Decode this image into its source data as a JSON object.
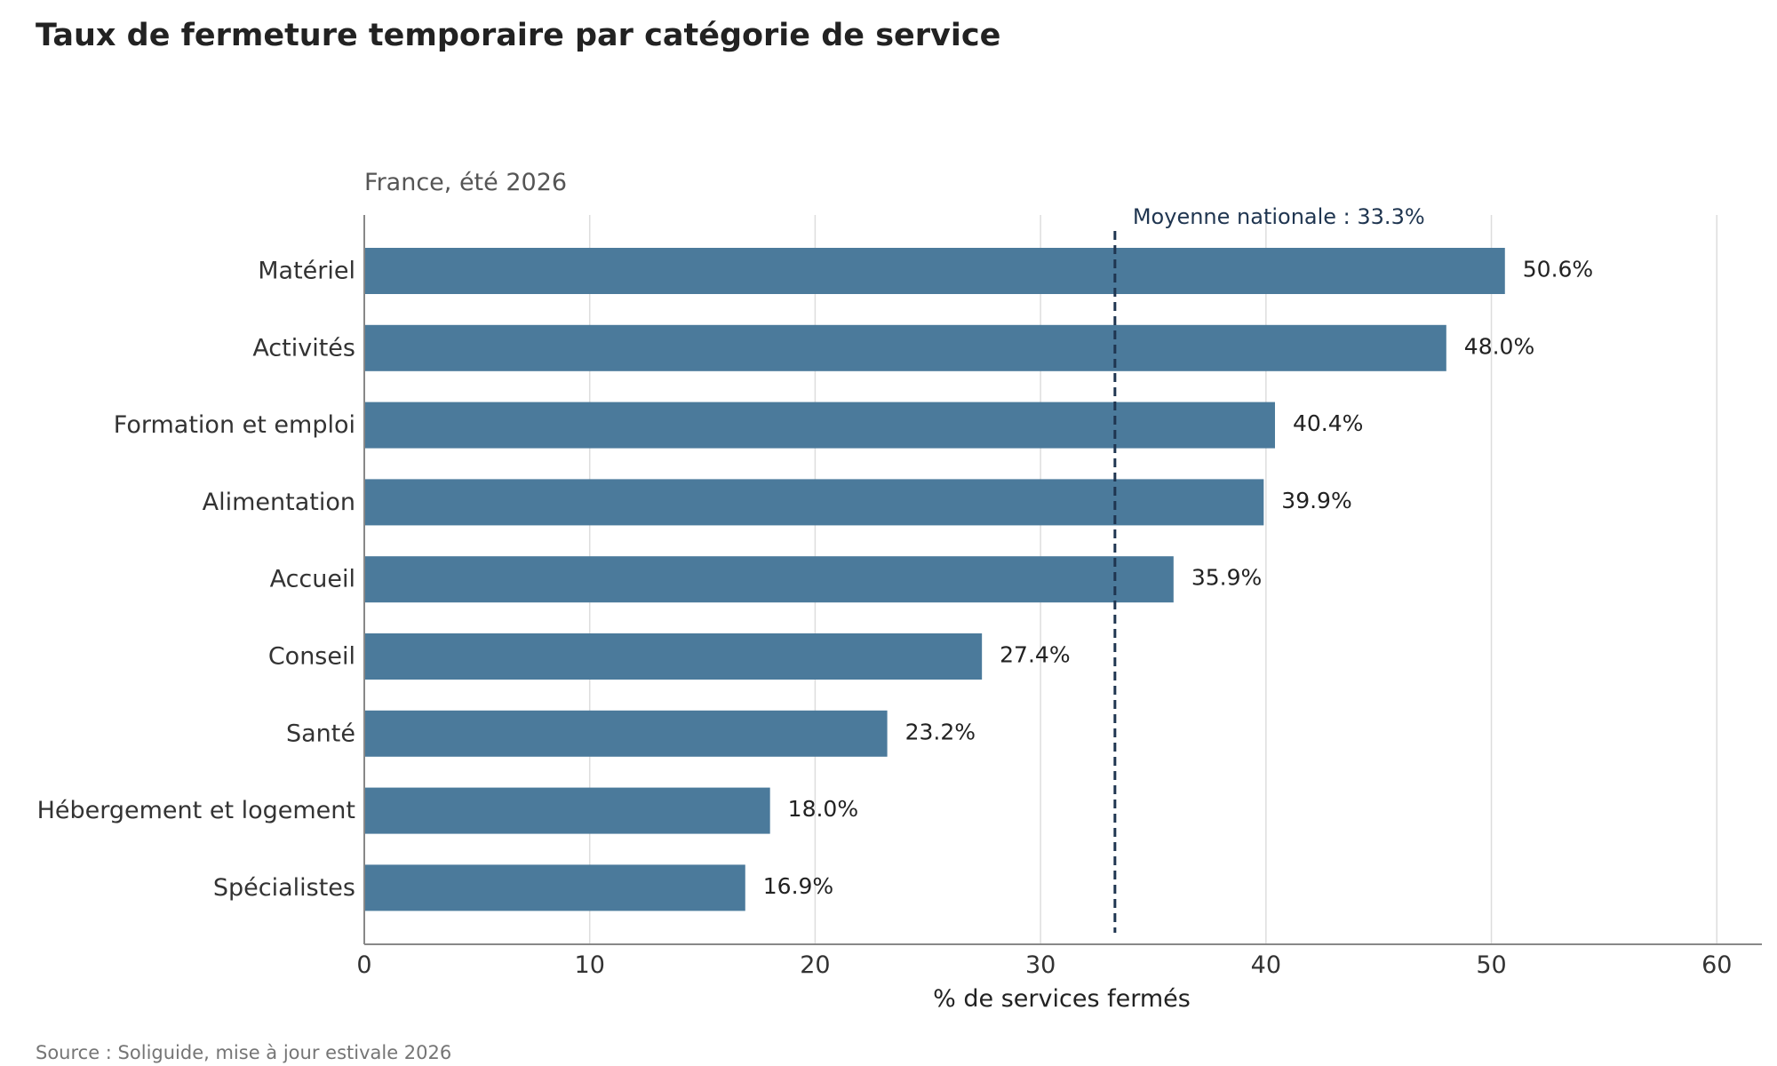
{
  "chart_data": {
    "type": "bar",
    "orientation": "horizontal",
    "title": "Taux de fermeture temporaire par catégorie de service",
    "subtitle": "France, été 2026",
    "xlabel": "% de services fermés",
    "ylabel": "",
    "xlim": [
      0,
      62
    ],
    "xticks": [
      0,
      10,
      20,
      30,
      40,
      50,
      60
    ],
    "grid": "vertical",
    "bar_color": "#4b7a9b",
    "reference_line": {
      "value": 33.3,
      "label": "Moyenne nationale : 33.3%",
      "color": "#1f3550",
      "style": "dashed"
    },
    "categories": [
      "Matériel",
      "Activités",
      "Formation et emploi",
      "Alimentation",
      "Accueil",
      "Conseil",
      "Santé",
      "Hébergement et logement",
      "Spécialistes"
    ],
    "values": [
      50.6,
      48.0,
      40.4,
      39.9,
      35.9,
      27.4,
      23.2,
      18.0,
      16.9
    ],
    "value_labels": [
      "50.6%",
      "48.0%",
      "40.4%",
      "39.9%",
      "35.9%",
      "27.4%",
      "23.2%",
      "18.0%",
      "16.9%"
    ],
    "source": "Source : Soliguide, mise à jour estivale 2026"
  }
}
